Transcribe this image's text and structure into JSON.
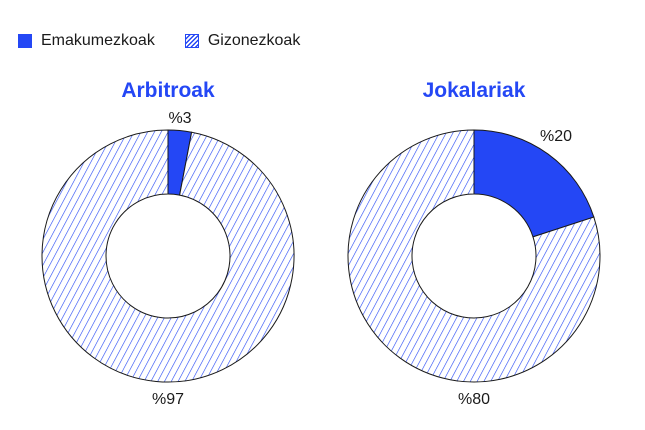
{
  "legend": {
    "women": "Emakumezkoak",
    "men": "Gizonezkoak"
  },
  "colors": {
    "women": "#2447f5",
    "men_hatch": "#2447f5",
    "title": "#2447f5",
    "outline": "#1a1a1a"
  },
  "chart_data": [
    {
      "type": "pie",
      "title": "Arbitroak",
      "categories": [
        "Emakumezkoak",
        "Gizonezkoak"
      ],
      "values": [
        3,
        97
      ],
      "labels": [
        "%3",
        "%97"
      ],
      "style": "donut"
    },
    {
      "type": "pie",
      "title": "Jokalariak",
      "categories": [
        "Emakumezkoak",
        "Gizonezkoak"
      ],
      "values": [
        20,
        80
      ],
      "labels": [
        "%20",
        "%80"
      ],
      "style": "donut"
    }
  ]
}
